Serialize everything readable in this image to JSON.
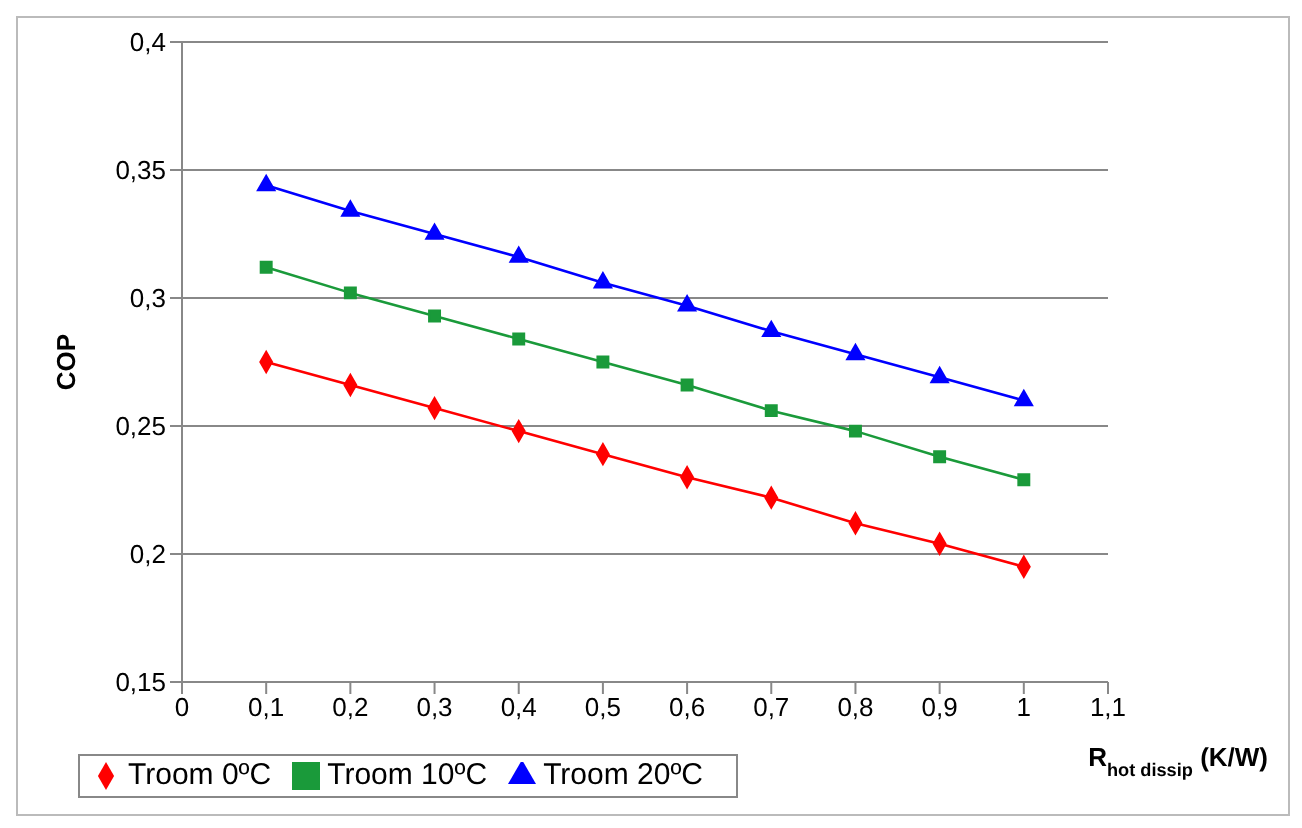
{
  "chart_data": {
    "type": "line",
    "xlabel": "R$_{hot dissip}$ (K/W)",
    "ylabel": "COP",
    "x": [
      0.1,
      0.2,
      0.3,
      0.4,
      0.5,
      0.6,
      0.7,
      0.8,
      0.9,
      1
    ],
    "series": [
      {
        "name": "Troom 0ºC",
        "color": "#ff0000",
        "marker": "diamond",
        "values": [
          0.275,
          0.266,
          0.257,
          0.248,
          0.239,
          0.23,
          0.222,
          0.212,
          0.204,
          0.195
        ]
      },
      {
        "name": "Troom 10ºC",
        "color": "#1a9a3a",
        "marker": "square",
        "values": [
          0.312,
          0.302,
          0.293,
          0.284,
          0.275,
          0.266,
          0.256,
          0.248,
          0.238,
          0.229
        ]
      },
      {
        "name": "Troom 20ºC",
        "color": "#0000ff",
        "marker": "triangle",
        "values": [
          0.344,
          0.334,
          0.325,
          0.316,
          0.306,
          0.297,
          0.287,
          0.278,
          0.269,
          0.26
        ]
      }
    ],
    "xlim": [
      0,
      1.1
    ],
    "xticks": [
      0,
      {
        "value": 0.1,
        "label": "0,1"
      },
      {
        "value": 0.2,
        "label": "0,2"
      },
      {
        "value": 0.3,
        "label": "0,3"
      },
      {
        "value": 0.4,
        "label": "0,4"
      },
      {
        "value": 0.5,
        "label": "0,5"
      },
      {
        "value": 0.6,
        "label": "0,6"
      },
      {
        "value": 0.7,
        "label": "0,7"
      },
      {
        "value": 0.8,
        "label": "0,8"
      },
      {
        "value": 0.9,
        "label": "0,9"
      },
      1,
      {
        "value": 1.1,
        "label": "1,1"
      }
    ],
    "ylim": [
      0.15,
      0.4
    ],
    "yticks": [
      {
        "value": 0.15,
        "label": "0,15"
      },
      {
        "value": 0.2,
        "label": "0,2"
      },
      {
        "value": 0.25,
        "label": "0,25"
      },
      {
        "value": 0.3,
        "label": "0,3"
      },
      {
        "value": 0.35,
        "label": "0,35"
      },
      {
        "value": 0.4,
        "label": "0,4"
      }
    ],
    "grid": "y",
    "legend": "bottom left",
    "line_style": "solid"
  }
}
